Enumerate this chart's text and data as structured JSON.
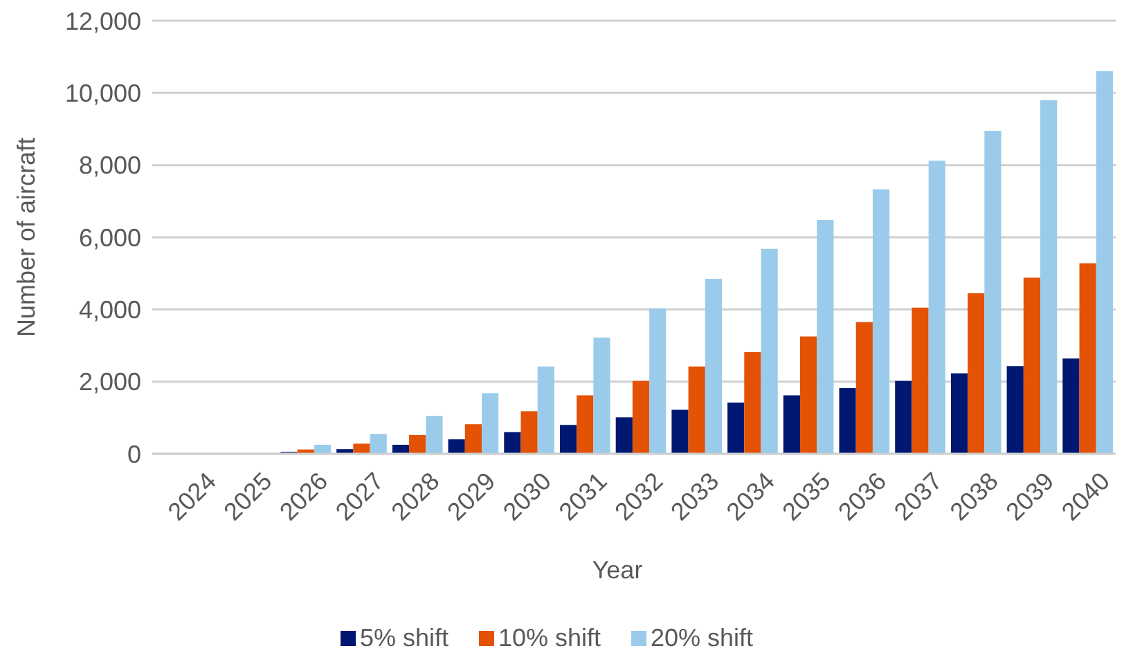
{
  "chart_data": {
    "type": "bar",
    "xlabel": "Year",
    "ylabel": "Number of aircraft",
    "categories": [
      "2024",
      "2025",
      "2026",
      "2027",
      "2028",
      "2029",
      "2030",
      "2031",
      "2032",
      "2033",
      "2034",
      "2035",
      "2036",
      "2037",
      "2038",
      "2039",
      "2040"
    ],
    "series": [
      {
        "name": "5% shift",
        "color": "#001871",
        "values": [
          0,
          0,
          50,
          130,
          250,
          400,
          600,
          800,
          1010,
          1220,
          1420,
          1620,
          1820,
          2020,
          2230,
          2430,
          2640
        ]
      },
      {
        "name": "10% shift",
        "color": "#e35205",
        "values": [
          0,
          0,
          120,
          280,
          520,
          820,
          1180,
          1620,
          2020,
          2420,
          2820,
          3250,
          3650,
          4050,
          4450,
          4880,
          5280
        ]
      },
      {
        "name": "20% shift",
        "color": "#9bcbeb",
        "values": [
          0,
          0,
          250,
          550,
          1050,
          1680,
          2420,
          3220,
          4030,
          4850,
          5680,
          6480,
          7330,
          8120,
          8950,
          9800,
          10600
        ]
      }
    ],
    "ylim": [
      0,
      12000
    ],
    "yticks": [
      {
        "value": 0,
        "label": "0"
      },
      {
        "value": 2000,
        "label": "2,000"
      },
      {
        "value": 4000,
        "label": "4,000"
      },
      {
        "value": 6000,
        "label": "6,000"
      },
      {
        "value": 8000,
        "label": "8,000"
      },
      {
        "value": 10000,
        "label": "10,000"
      },
      {
        "value": 12000,
        "label": "12,000"
      }
    ],
    "grid": "y",
    "legend": "bottom"
  }
}
